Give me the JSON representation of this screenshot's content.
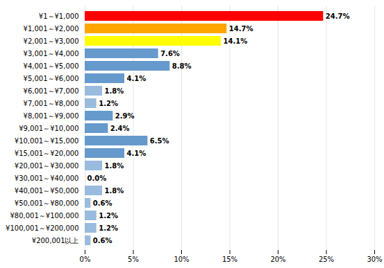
{
  "chart_data": {
    "type": "bar",
    "orientation": "horizontal",
    "categories": [
      "¥1～¥1,000",
      "¥1,001～¥2,000",
      "¥2,001～¥3,000",
      "¥3,001～¥4,000",
      "¥4,001～¥5,000",
      "¥5,001～¥6,000",
      "¥6,001～¥7,000",
      "¥7,001～¥8,000",
      "¥8,001～¥9,000",
      "¥9,001～¥10,000",
      "¥10,001～¥15,000",
      "¥15,001～¥20,000",
      "¥20,001～¥30,000",
      "¥30,001～¥40,000",
      "¥40,001～¥50,000",
      "¥50,001～¥80,000",
      "¥80,001～¥100,000",
      "¥100,001～¥200,000",
      "¥200,001以上"
    ],
    "values": [
      24.7,
      14.7,
      14.1,
      7.6,
      8.8,
      4.1,
      1.8,
      1.2,
      2.9,
      2.4,
      6.5,
      4.1,
      1.8,
      0.0,
      1.8,
      0.6,
      1.2,
      1.2,
      0.6
    ],
    "value_labels": [
      "24.7%",
      "14.7%",
      "14.1%",
      "7.6%",
      "8.8%",
      "4.1%",
      "1.8%",
      "1.2%",
      "2.9%",
      "2.4%",
      "6.5%",
      "4.1%",
      "1.8%",
      "0.0%",
      "1.8%",
      "0.6%",
      "1.2%",
      "1.2%",
      "0.6%"
    ],
    "colors": [
      "#FF0000",
      "#FFA500",
      "#FFFF00",
      "#6699CC",
      "#6699CC",
      "#6699CC",
      "#99BBDD",
      "#99BBDD",
      "#6699CC",
      "#6699CC",
      "#6699CC",
      "#6699CC",
      "#99BBDD",
      "#FFFFFF",
      "#99BBDD",
      "#99BBDD",
      "#99BBDD",
      "#99BBDD",
      "#99BBDD"
    ],
    "xlim": [
      0,
      30
    ],
    "xticks": [
      {
        "value": 0,
        "label": "0%"
      },
      {
        "value": 5,
        "label": "5%"
      },
      {
        "value": 10,
        "label": "10%"
      },
      {
        "value": 15,
        "label": "15%"
      },
      {
        "value": 20,
        "label": "20%"
      },
      {
        "value": 25,
        "label": "25%"
      },
      {
        "value": 30,
        "label": "30%"
      }
    ],
    "grid": true,
    "data_labels": true
  }
}
